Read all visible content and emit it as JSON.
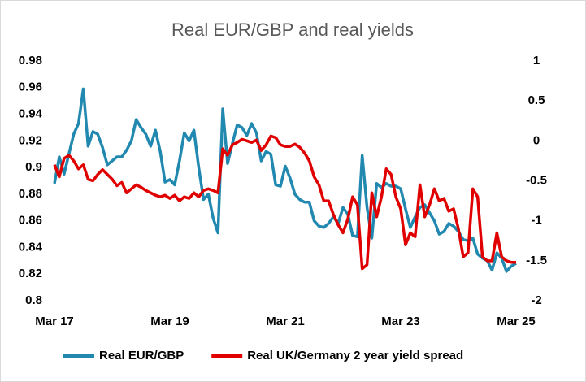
{
  "chart_data": {
    "type": "line",
    "title": "Real EUR/GBP and real yields",
    "categories": [
      "Mar 17",
      null,
      null,
      null,
      null,
      null,
      null,
      null,
      null,
      null,
      null,
      null,
      null,
      null,
      null,
      null,
      null,
      null,
      null,
      null,
      null,
      null,
      null,
      null,
      "Mar 19",
      null,
      null,
      null,
      null,
      null,
      null,
      null,
      null,
      null,
      null,
      null,
      null,
      null,
      null,
      null,
      null,
      null,
      null,
      null,
      null,
      null,
      null,
      null,
      "Mar 21",
      null,
      null,
      null,
      null,
      null,
      null,
      null,
      null,
      null,
      null,
      null,
      null,
      null,
      null,
      null,
      null,
      null,
      null,
      null,
      null,
      null,
      null,
      null,
      "Mar 23",
      null,
      null,
      null,
      null,
      null,
      null,
      null,
      null,
      null,
      null,
      null,
      null,
      null,
      null,
      null,
      null,
      null,
      null,
      null,
      null,
      null,
      null,
      null,
      "Mar 25"
    ],
    "series": [
      {
        "name": "Real EUR/GBP",
        "color": "#2188b0",
        "axis": "y",
        "values": [
          0.888,
          0.908,
          0.895,
          0.91,
          0.925,
          0.933,
          0.959,
          0.916,
          0.927,
          0.925,
          0.915,
          0.902,
          0.905,
          0.908,
          0.908,
          0.913,
          0.92,
          0.936,
          0.93,
          0.925,
          0.916,
          0.928,
          0.912,
          0.889,
          0.891,
          0.887,
          0.905,
          0.926,
          0.92,
          0.928,
          0.9,
          0.876,
          0.88,
          0.862,
          0.851,
          0.944,
          0.903,
          0.918,
          0.932,
          0.93,
          0.924,
          0.933,
          0.926,
          0.905,
          0.912,
          0.91,
          0.887,
          0.886,
          0.901,
          0.892,
          0.88,
          0.876,
          0.874,
          0.874,
          0.86,
          0.856,
          0.855,
          0.858,
          0.863,
          0.858,
          0.87,
          0.865,
          0.849,
          0.848,
          0.909,
          0.87,
          0.847,
          0.888,
          0.885,
          0.888,
          0.886,
          0.886,
          0.884,
          0.869,
          0.855,
          0.863,
          0.87,
          0.872,
          0.866,
          0.86,
          0.85,
          0.852,
          0.858,
          0.856,
          0.852,
          0.846,
          0.845,
          0.847,
          0.835,
          0.832,
          0.83,
          0.823,
          0.836,
          0.832,
          0.822,
          0.826,
          0.828
        ]
      },
      {
        "name": "Real UK/Germany 2 year yield spread",
        "color": "#e00000",
        "axis": "y2",
        "values": [
          -0.3,
          -0.45,
          -0.22,
          -0.18,
          -0.25,
          -0.35,
          -0.3,
          -0.48,
          -0.5,
          -0.42,
          -0.36,
          -0.42,
          -0.48,
          -0.56,
          -0.52,
          -0.65,
          -0.6,
          -0.55,
          -0.58,
          -0.62,
          -0.65,
          -0.68,
          -0.7,
          -0.68,
          -0.72,
          -0.68,
          -0.75,
          -0.7,
          -0.72,
          -0.65,
          -0.7,
          -0.62,
          -0.6,
          -0.62,
          -0.65,
          -0.1,
          -0.18,
          -0.05,
          -0.02,
          0.02,
          0.0,
          -0.02,
          0.01,
          -0.12,
          -0.05,
          0.06,
          0.04,
          -0.05,
          -0.07,
          -0.07,
          -0.04,
          -0.08,
          -0.15,
          -0.25,
          -0.45,
          -0.55,
          -0.75,
          -0.75,
          -0.92,
          -1.05,
          -1.15,
          -0.98,
          -0.7,
          -0.8,
          -1.6,
          -1.55,
          -0.65,
          -0.95,
          -0.7,
          -0.35,
          -0.42,
          -0.7,
          -0.85,
          -1.3,
          -1.15,
          -1.2,
          -0.55,
          -0.95,
          -0.8,
          -0.6,
          -0.75,
          -0.72,
          -0.88,
          -0.85,
          -1.1,
          -1.45,
          -1.4,
          -0.6,
          -0.7,
          -1.45,
          -1.5,
          -1.5,
          -1.15,
          -1.45,
          -1.5,
          -1.52,
          -1.52
        ]
      }
    ],
    "ylim": [
      0.8,
      0.98
    ],
    "yticks": [
      0.8,
      0.82,
      0.84,
      0.86,
      0.88,
      0.9,
      0.92,
      0.94,
      0.96,
      0.98
    ],
    "y2lim": [
      -2,
      1
    ],
    "y2ticks": [
      -2,
      -1.5,
      -1,
      -0.5,
      0,
      0.5,
      1
    ],
    "legend": "bottom"
  }
}
